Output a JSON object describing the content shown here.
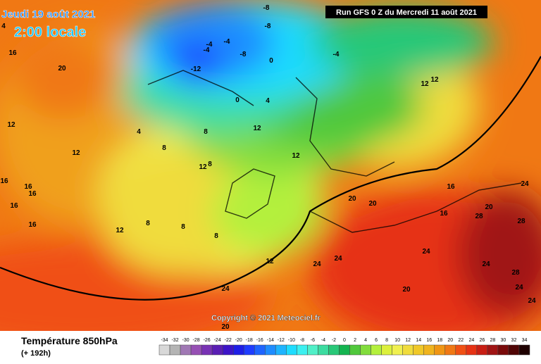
{
  "header": {
    "valid": "Jeudi 19 août 2021",
    "local_time": "2:00 locale",
    "run": "Run GFS 0 Z du Mercredi 11 août 2021"
  },
  "copyright": "Copyright © 2021 Meteociel.fr",
  "footer": {
    "title": "Température 850hPa",
    "lead": "(+ 192h)"
  },
  "scale": {
    "ticks": [
      -34,
      -32,
      -30,
      -28,
      -26,
      -24,
      -22,
      -20,
      -18,
      -16,
      -14,
      -12,
      -10,
      -8,
      -6,
      -4,
      -2,
      0,
      2,
      4,
      6,
      8,
      10,
      12,
      14,
      16,
      18,
      20,
      22,
      24,
      26,
      28,
      30,
      32,
      34
    ],
    "colors": [
      "#d8d8d8",
      "#b4b4b4",
      "#a078b4",
      "#9650b4",
      "#7832b4",
      "#5a1eb4",
      "#3c14c8",
      "#1e1ee6",
      "#1e3cff",
      "#1e64ff",
      "#1e8cff",
      "#1eb4ff",
      "#1edcff",
      "#3cf0f0",
      "#50f0c8",
      "#3cdca0",
      "#28c878",
      "#14b450",
      "#50c83c",
      "#82dc3c",
      "#b4f03c",
      "#dcf03c",
      "#f0f050",
      "#f0dc3c",
      "#f0c828",
      "#f0b41e",
      "#f09614",
      "#f07814",
      "#f05014",
      "#e63214",
      "#c81e14",
      "#a01414",
      "#7a0a0a",
      "#500505",
      "#1e0000"
    ]
  },
  "contour_labels": [
    16,
    20,
    12,
    12,
    16,
    16,
    16,
    16,
    16,
    12,
    8,
    4,
    8,
    8,
    12,
    12,
    8,
    8,
    4,
    0,
    -4,
    -4,
    -8,
    -12,
    -4,
    -8,
    -8,
    -4,
    0,
    4,
    8,
    12,
    12,
    16,
    20,
    20,
    24,
    24,
    28,
    24,
    24,
    20,
    16,
    20,
    24,
    28,
    28,
    24,
    12,
    24,
    20,
    24,
    12
  ]
}
